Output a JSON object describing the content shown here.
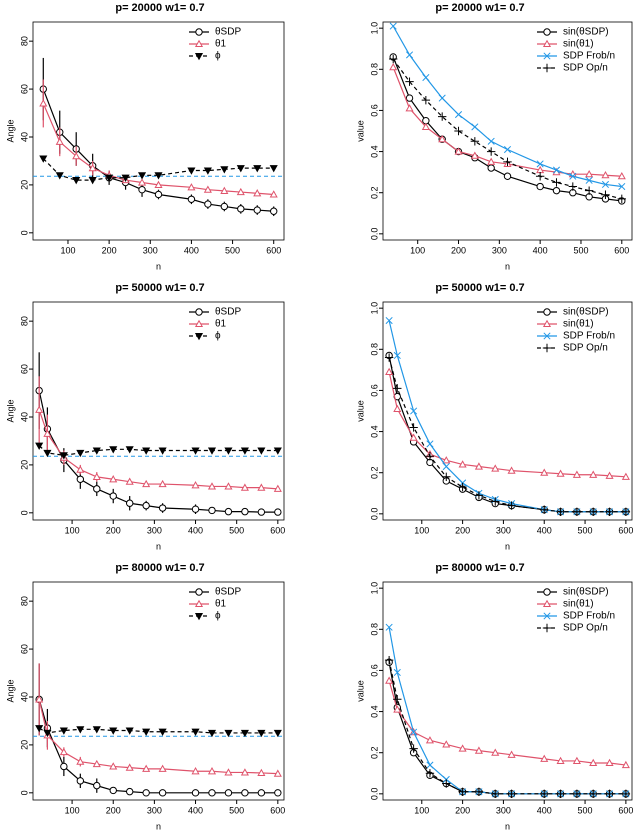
{
  "chart_data": [
    {
      "type": "line",
      "title": "p= 20000 w1= 0.7",
      "xlabel": "n",
      "ylabel": "Angle",
      "xlim": [
        15,
        625
      ],
      "xticks": [
        100,
        200,
        300,
        400,
        500,
        600
      ],
      "ylim": [
        -3,
        88
      ],
      "yticks": [
        0,
        20,
        40,
        60,
        80
      ],
      "hline": 23.6,
      "hline_color": "#2297e6",
      "legend": "topright",
      "x": [
        40,
        80,
        120,
        160,
        200,
        240,
        280,
        320,
        400,
        440,
        480,
        520,
        560,
        600
      ],
      "series": [
        {
          "name": "θSDP",
          "color": "#000000",
          "marker": "circle",
          "dash": false,
          "values": [
            60,
            42,
            35,
            28,
            23,
            21,
            18,
            16,
            14,
            12,
            11,
            10,
            9.5,
            9
          ],
          "errors": [
            13,
            9,
            7,
            5,
            3,
            3,
            3,
            2,
            2,
            2,
            2,
            2,
            2,
            2
          ]
        },
        {
          "name": "θ1",
          "color": "#df536b",
          "marker": "triangle",
          "dash": false,
          "values": [
            54,
            38,
            32,
            27,
            24,
            22,
            21,
            20,
            19,
            18,
            17.5,
            17,
            16.5,
            16
          ],
          "errors": [
            10,
            6,
            4,
            3,
            2,
            1,
            1,
            1,
            1,
            1,
            1,
            1,
            1,
            1
          ]
        },
        {
          "name": "ϕ",
          "color": "#000000",
          "marker": "tridown",
          "dash": true,
          "values": [
            31,
            24,
            22,
            22,
            23,
            23,
            24,
            24,
            26,
            26,
            26.5,
            27,
            27,
            27
          ]
        }
      ]
    },
    {
      "type": "line",
      "title": "p= 20000 w1= 0.7",
      "xlabel": "n",
      "ylabel": "value",
      "xlim": [
        15,
        625
      ],
      "xticks": [
        100,
        200,
        300,
        400,
        500,
        600
      ],
      "ylim": [
        -0.03,
        1.03
      ],
      "yticks": [
        {
          "value": 0,
          "label": "0.0"
        },
        0.2,
        0.4,
        0.6,
        0.8,
        {
          "value": 1,
          "label": "1.0"
        }
      ],
      "legend": "topright",
      "x": [
        40,
        80,
        120,
        160,
        200,
        240,
        280,
        320,
        400,
        440,
        480,
        520,
        560,
        600
      ],
      "series": [
        {
          "name": "sin(θSDP)",
          "color": "#000000",
          "marker": "circle",
          "dash": false,
          "values": [
            0.86,
            0.66,
            0.55,
            0.46,
            0.4,
            0.37,
            0.32,
            0.28,
            0.23,
            0.21,
            0.2,
            0.18,
            0.17,
            0.16
          ]
        },
        {
          "name": "sin(θ1)",
          "color": "#df536b",
          "marker": "triangle",
          "dash": false,
          "values": [
            0.81,
            0.61,
            0.52,
            0.46,
            0.4,
            0.38,
            0.35,
            0.34,
            0.31,
            0.3,
            0.29,
            0.29,
            0.285,
            0.28
          ]
        },
        {
          "name": "SDP Frob/n",
          "color": "#2297e6",
          "marker": "x",
          "dash": false,
          "values": [
            1.01,
            0.87,
            0.76,
            0.66,
            0.58,
            0.52,
            0.45,
            0.41,
            0.34,
            0.31,
            0.28,
            0.26,
            0.24,
            0.23
          ]
        },
        {
          "name": "SDP Op/n",
          "color": "#000000",
          "marker": "plus",
          "dash": true,
          "values": [
            0.85,
            0.74,
            0.65,
            0.57,
            0.5,
            0.45,
            0.4,
            0.35,
            0.28,
            0.25,
            0.23,
            0.21,
            0.19,
            0.17
          ]
        }
      ]
    },
    {
      "type": "line",
      "title": "p= 50000 w1= 0.7",
      "xlabel": "n",
      "ylabel": "Angle",
      "xlim": [
        5,
        615
      ],
      "xticks": [
        100,
        200,
        300,
        400,
        500,
        600
      ],
      "ylim": [
        -3,
        88
      ],
      "yticks": [
        0,
        20,
        40,
        60,
        80
      ],
      "hline": 23.6,
      "hline_color": "#2297e6",
      "legend": "topright",
      "x": [
        20,
        40,
        80,
        120,
        160,
        200,
        240,
        280,
        320,
        400,
        440,
        480,
        520,
        560,
        600
      ],
      "series": [
        {
          "name": "θSDP",
          "color": "#000000",
          "marker": "circle",
          "dash": false,
          "values": [
            51,
            35,
            22,
            14,
            10,
            7,
            4,
            3,
            2,
            1.5,
            1,
            0.5,
            0.5,
            0.3,
            0.3
          ],
          "errors": [
            16,
            9,
            5,
            4,
            3,
            3,
            3,
            2,
            2,
            2,
            1,
            1,
            1,
            1,
            1
          ]
        },
        {
          "name": "θ1",
          "color": "#df536b",
          "marker": "triangle",
          "dash": false,
          "values": [
            43,
            33,
            23,
            18,
            15,
            14,
            13,
            12,
            12,
            11.5,
            11,
            11,
            10.5,
            10.5,
            10
          ],
          "errors": [
            14,
            8,
            3,
            2,
            2,
            1,
            1,
            1,
            1,
            1,
            1,
            1,
            1,
            1,
            1
          ]
        },
        {
          "name": "ϕ",
          "color": "#000000",
          "marker": "tridown",
          "dash": true,
          "values": [
            28,
            25,
            24,
            25,
            26,
            26.5,
            26.5,
            26,
            26,
            26,
            26,
            26,
            26,
            26,
            26
          ]
        }
      ]
    },
    {
      "type": "line",
      "title": "p= 50000 w1= 0.7",
      "xlabel": "n",
      "ylabel": "value",
      "xlim": [
        5,
        615
      ],
      "xticks": [
        100,
        200,
        300,
        400,
        500,
        600
      ],
      "ylim": [
        -0.03,
        1.03
      ],
      "yticks": [
        {
          "value": 0,
          "label": "0.0"
        },
        0.2,
        0.4,
        0.6,
        0.8,
        {
          "value": 1,
          "label": "1.0"
        }
      ],
      "legend": "topright",
      "x": [
        20,
        40,
        80,
        120,
        160,
        200,
        240,
        280,
        320,
        400,
        440,
        480,
        520,
        560,
        600
      ],
      "series": [
        {
          "name": "sin(θSDP)",
          "color": "#000000",
          "marker": "circle",
          "dash": false,
          "values": [
            0.77,
            0.57,
            0.35,
            0.25,
            0.16,
            0.12,
            0.08,
            0.05,
            0.04,
            0.02,
            0.01,
            0.01,
            0.01,
            0.01,
            0.01
          ]
        },
        {
          "name": "sin(θ1)",
          "color": "#df536b",
          "marker": "triangle",
          "dash": false,
          "values": [
            0.69,
            0.51,
            0.37,
            0.29,
            0.26,
            0.24,
            0.23,
            0.22,
            0.21,
            0.2,
            0.195,
            0.19,
            0.19,
            0.185,
            0.18
          ]
        },
        {
          "name": "SDP Frob/n",
          "color": "#2297e6",
          "marker": "x",
          "dash": false,
          "values": [
            0.94,
            0.77,
            0.5,
            0.34,
            0.23,
            0.15,
            0.1,
            0.07,
            0.05,
            0.02,
            0.01,
            0.01,
            0.01,
            0.01,
            0.01
          ]
        },
        {
          "name": "SDP Op/n",
          "color": "#000000",
          "marker": "plus",
          "dash": true,
          "values": [
            0.76,
            0.61,
            0.42,
            0.28,
            0.18,
            0.13,
            0.09,
            0.06,
            0.04,
            0.02,
            0.01,
            0.01,
            0.01,
            0.01,
            0.01
          ]
        }
      ]
    },
    {
      "type": "line",
      "title": "p= 80000 w1= 0.7",
      "xlabel": "n",
      "ylabel": "Angle",
      "xlim": [
        5,
        615
      ],
      "xticks": [
        100,
        200,
        300,
        400,
        500,
        600
      ],
      "ylim": [
        -3,
        88
      ],
      "yticks": [
        0,
        20,
        40,
        60,
        80
      ],
      "hline": 23.6,
      "hline_color": "#2297e6",
      "legend": "topright",
      "x": [
        20,
        40,
        80,
        120,
        160,
        200,
        240,
        280,
        320,
        400,
        440,
        480,
        520,
        560,
        600
      ],
      "series": [
        {
          "name": "θSDP",
          "color": "#000000",
          "marker": "circle",
          "dash": false,
          "values": [
            39,
            27,
            11,
            5,
            3,
            1,
            0.5,
            0,
            0,
            0,
            0,
            0,
            0,
            0,
            0
          ],
          "errors": [
            15,
            8,
            4,
            3,
            3,
            1,
            1,
            0,
            0,
            0,
            0,
            0,
            0,
            0,
            0
          ]
        },
        {
          "name": "θ1",
          "color": "#df536b",
          "marker": "triangle",
          "dash": false,
          "values": [
            39,
            24,
            17,
            13,
            12,
            11,
            10.5,
            10,
            10,
            9,
            9,
            8.5,
            8.5,
            8.3,
            8
          ],
          "errors": [
            15,
            6,
            2,
            2,
            1,
            1,
            1,
            1,
            1,
            1,
            1,
            1,
            1,
            1,
            1
          ]
        },
        {
          "name": "ϕ",
          "color": "#000000",
          "marker": "tridown",
          "dash": true,
          "values": [
            27,
            25,
            26,
            26.5,
            26.5,
            26,
            26,
            25.5,
            25.5,
            25.5,
            25,
            25,
            25,
            25,
            25
          ]
        }
      ]
    },
    {
      "type": "line",
      "title": "p= 80000 w1= 0.7",
      "xlabel": "n",
      "ylabel": "value",
      "xlim": [
        5,
        615
      ],
      "xticks": [
        100,
        200,
        300,
        400,
        500,
        600
      ],
      "ylim": [
        -0.03,
        1.03
      ],
      "yticks": [
        {
          "value": 0,
          "label": "0.0"
        },
        0.2,
        0.4,
        0.6,
        0.8,
        {
          "value": 1,
          "label": "1.0"
        }
      ],
      "legend": "topright",
      "x": [
        20,
        40,
        80,
        120,
        160,
        200,
        240,
        280,
        320,
        400,
        440,
        480,
        520,
        560,
        600
      ],
      "series": [
        {
          "name": "sin(θSDP)",
          "color": "#000000",
          "marker": "circle",
          "dash": false,
          "values": [
            0.64,
            0.42,
            0.2,
            0.09,
            0.05,
            0.01,
            0.01,
            0,
            0,
            0,
            0,
            0,
            0,
            0,
            0
          ]
        },
        {
          "name": "sin(θ1)",
          "color": "#df536b",
          "marker": "triangle",
          "dash": false,
          "values": [
            0.55,
            0.41,
            0.3,
            0.26,
            0.24,
            0.22,
            0.21,
            0.2,
            0.19,
            0.17,
            0.16,
            0.16,
            0.15,
            0.15,
            0.14
          ]
        },
        {
          "name": "SDP Frob/n",
          "color": "#2297e6",
          "marker": "x",
          "dash": false,
          "values": [
            0.81,
            0.59,
            0.3,
            0.14,
            0.07,
            0.01,
            0.01,
            0,
            0,
            0,
            0,
            0,
            0,
            0,
            0
          ]
        },
        {
          "name": "SDP Op/n",
          "color": "#000000",
          "marker": "plus",
          "dash": true,
          "values": [
            0.65,
            0.46,
            0.22,
            0.1,
            0.05,
            0.01,
            0.01,
            0,
            0,
            0,
            0,
            0,
            0,
            0,
            0
          ]
        }
      ]
    }
  ]
}
